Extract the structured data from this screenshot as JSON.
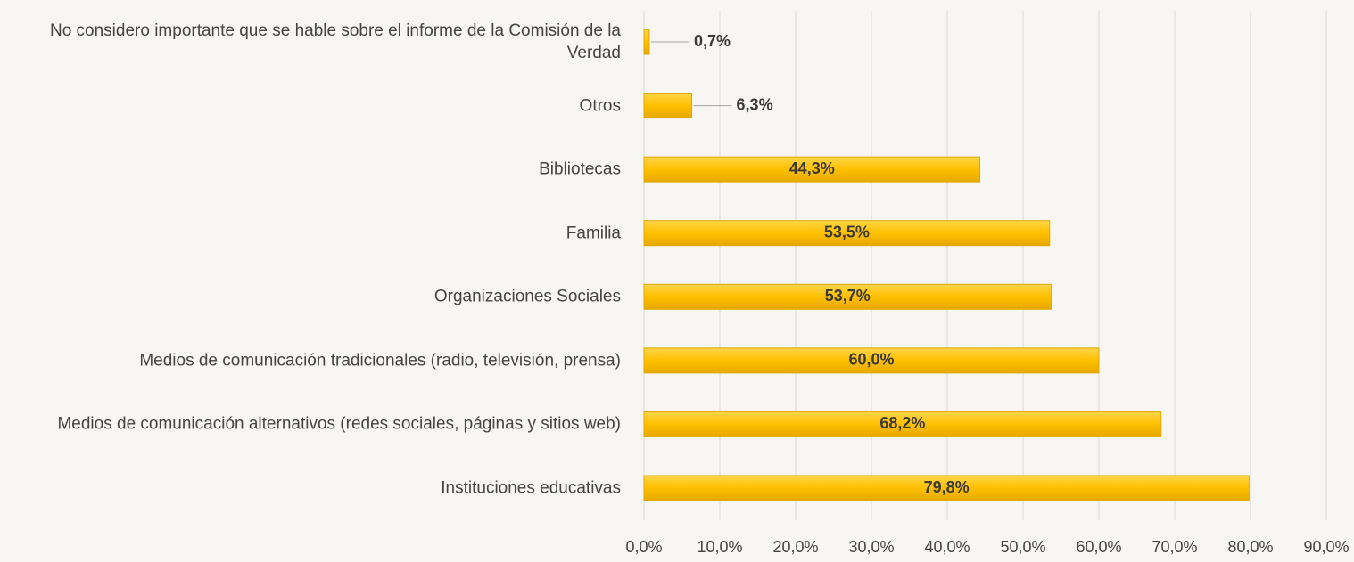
{
  "chart_data": {
    "type": "hbar",
    "categories": [
      "No considero importante que se hable sobre el informe de la Comisión de la Verdad",
      "Otros",
      "Bibliotecas",
      "Familia",
      "Organizaciones Sociales",
      "Medios de comunicación tradicionales (radio, televisión, prensa)",
      "Medios de comunicación alternativos (redes sociales, páginas y sitios web)",
      "Instituciones educativas"
    ],
    "values": [
      0.7,
      6.3,
      44.3,
      53.5,
      53.7,
      60.0,
      68.2,
      79.8
    ],
    "value_labels": [
      "0,7%",
      "6,3%",
      "44,3%",
      "53,5%",
      "53,7%",
      "60,0%",
      "68,2%",
      "79,8%"
    ],
    "color": "#ffc000",
    "xlim": [
      0,
      90
    ],
    "xticks": [
      {
        "value": 0,
        "label": "0,0%"
      },
      {
        "value": 10,
        "label": "10,0%"
      },
      {
        "value": 20,
        "label": "20,0%"
      },
      {
        "value": 30,
        "label": "30,0%"
      },
      {
        "value": 40,
        "label": "40,0%"
      },
      {
        "value": 50,
        "label": "50,0%"
      },
      {
        "value": 60,
        "label": "60,0%"
      },
      {
        "value": 70,
        "label": "70,0%"
      },
      {
        "value": 80,
        "label": "80,0%"
      },
      {
        "value": 90,
        "label": "90,0%"
      }
    ],
    "grid": true
  }
}
